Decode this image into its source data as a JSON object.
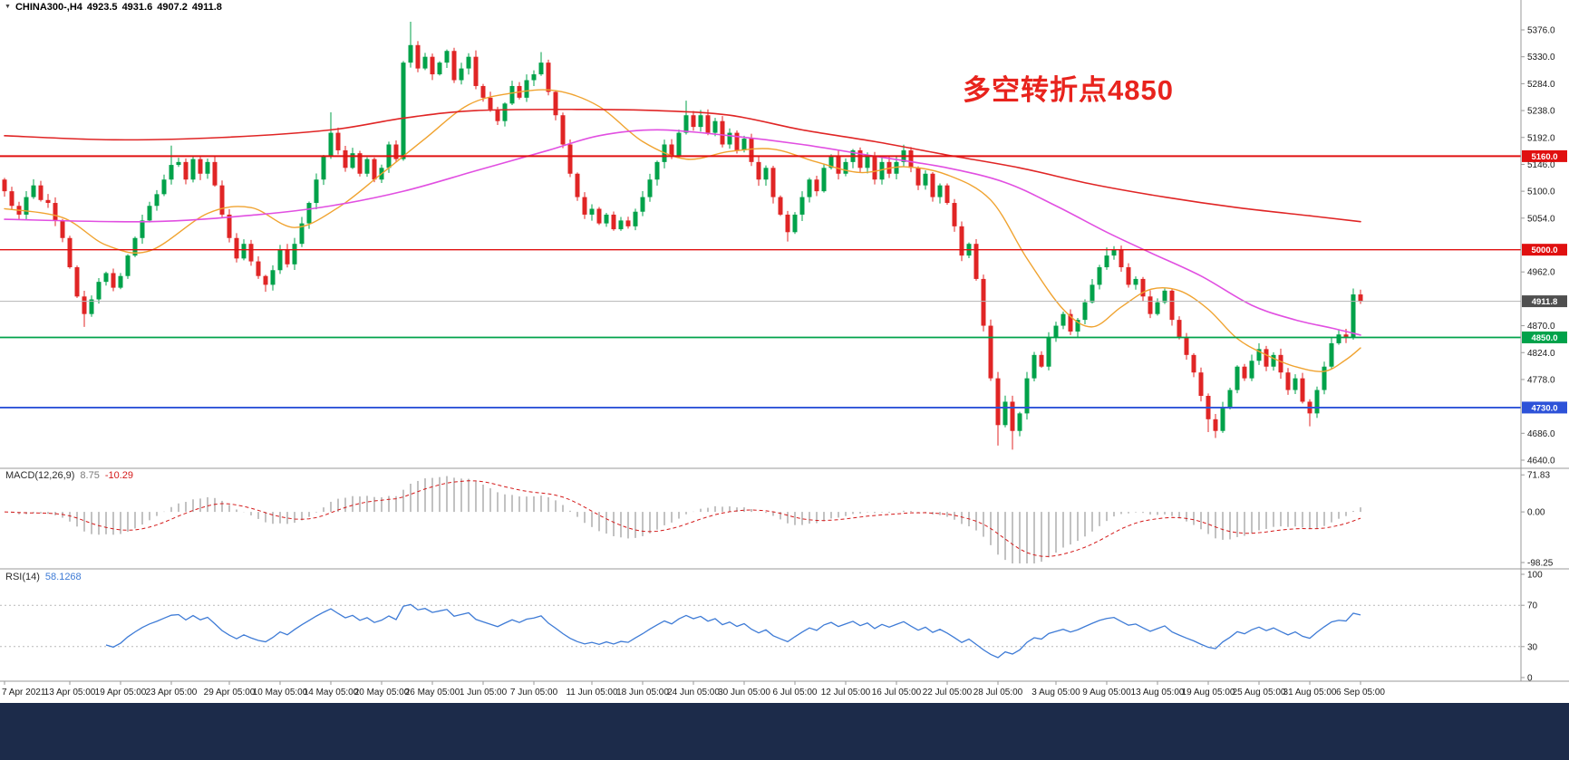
{
  "header": {
    "marker_icon": "▼",
    "symbol": "CHINA300-,H4",
    "open": "4923.5",
    "high": "4931.6",
    "low": "4907.2",
    "close": "4911.8"
  },
  "annotation": {
    "text": "多空转折点4850",
    "color": "#e8231d"
  },
  "colors": {
    "up": "#00a24a",
    "down": "#e02525",
    "ma_fast": "#f0a330",
    "ma_mid": "#e14fe1",
    "ma_slow": "#e02525",
    "macd_hist": "#9a9a9a",
    "macd_signal": "#d41a1a",
    "rsi_line": "#3e7bd6",
    "level_red": "#e01010",
    "level_green": "#00a24a",
    "level_blue": "#2d52d8",
    "current_price_line": "#b5b5b5",
    "badge_current_bg": "#4f4f4f",
    "badge_text": "#ffffff",
    "axis_text": "#1a1a1a",
    "separator": "#9a9a9a",
    "rsi_levels": "#b9b9b9",
    "bottom_bar": "#1c2b4a",
    "macd_value_main": "#7a7a7a"
  },
  "price_axis": {
    "ticks": [
      5376,
      5330,
      5284,
      5238,
      5192,
      5146,
      5100,
      5054,
      4962,
      4870,
      4824,
      4778,
      4686,
      4640
    ],
    "decimals": 1,
    "range": [
      4640,
      5376
    ]
  },
  "levels": [
    {
      "value": 5160.0,
      "label": "5160.0",
      "color_key": "level_red",
      "width": 2.0
    },
    {
      "value": 5000.0,
      "label": "5000.0",
      "color_key": "level_red",
      "width": 1.4
    },
    {
      "value": 4850.0,
      "label": "4850.0",
      "color_key": "level_green",
      "width": 1.8
    },
    {
      "value": 4730.0,
      "label": "4730.0",
      "color_key": "level_blue",
      "width": 1.8
    }
  ],
  "current_price": {
    "value": 4911.8,
    "label": "4911.8"
  },
  "x_axis": {
    "labels": [
      {
        "i": 0,
        "t": "7 Apr 2021"
      },
      {
        "i": 9,
        "t": "13 Apr 05:00"
      },
      {
        "i": 16,
        "t": "19 Apr 05:00"
      },
      {
        "i": 23,
        "t": "23 Apr 05:00"
      },
      {
        "i": 31,
        "t": "29 Apr 05:00"
      },
      {
        "i": 38,
        "t": "10 May 05:00"
      },
      {
        "i": 45,
        "t": "14 May 05:00"
      },
      {
        "i": 52,
        "t": "20 May 05:00"
      },
      {
        "i": 59,
        "t": "26 May 05:00"
      },
      {
        "i": 66,
        "t": "1 Jun 05:00"
      },
      {
        "i": 73,
        "t": "7 Jun 05:00"
      },
      {
        "i": 81,
        "t": "11 Jun 05:00"
      },
      {
        "i": 88,
        "t": "18 Jun 05:00"
      },
      {
        "i": 95,
        "t": "24 Jun 05:00"
      },
      {
        "i": 102,
        "t": "30 Jun 05:00"
      },
      {
        "i": 109,
        "t": "6 Jul 05:00"
      },
      {
        "i": 116,
        "t": "12 Jul 05:00"
      },
      {
        "i": 123,
        "t": "16 Jul 05:00"
      },
      {
        "i": 130,
        "t": "22 Jul 05:00"
      },
      {
        "i": 137,
        "t": "28 Jul 05:00"
      },
      {
        "i": 145,
        "t": "3 Aug 05:00"
      },
      {
        "i": 152,
        "t": "9 Aug 05:00"
      },
      {
        "i": 159,
        "t": "13 Aug 05:00"
      },
      {
        "i": 166,
        "t": "19 Aug 05:00"
      },
      {
        "i": 173,
        "t": "25 Aug 05:00"
      },
      {
        "i": 180,
        "t": "31 Aug 05:00"
      },
      {
        "i": 187,
        "t": "6 Sep 05:00"
      }
    ]
  },
  "chart_data": [
    {
      "type": "candlestick",
      "title": "CHINA300- H4",
      "ylim": [
        4640,
        5376
      ],
      "first_open": 5120,
      "closes": [
        5100,
        5075,
        5060,
        5090,
        5110,
        5085,
        5080,
        5050,
        5020,
        4970,
        4920,
        4890,
        4915,
        4945,
        4960,
        4935,
        4955,
        4990,
        5020,
        5050,
        5075,
        5095,
        5120,
        5145,
        5150,
        5120,
        5155,
        5130,
        5150,
        5110,
        5060,
        5020,
        4985,
        5010,
        4980,
        4955,
        4940,
        4965,
        5000,
        4975,
        5010,
        5045,
        5080,
        5120,
        5160,
        5200,
        5170,
        5140,
        5165,
        5130,
        5155,
        5120,
        5140,
        5180,
        5155,
        5320,
        5350,
        5310,
        5330,
        5300,
        5320,
        5340,
        5290,
        5310,
        5330,
        5280,
        5260,
        5240,
        5220,
        5250,
        5280,
        5260,
        5290,
        5300,
        5320,
        5270,
        5230,
        5180,
        5130,
        5090,
        5060,
        5070,
        5045,
        5060,
        5035,
        5050,
        5040,
        5065,
        5090,
        5120,
        5150,
        5180,
        5160,
        5200,
        5230,
        5210,
        5230,
        5200,
        5220,
        5180,
        5200,
        5170,
        5190,
        5150,
        5120,
        5140,
        5090,
        5060,
        5030,
        5060,
        5090,
        5120,
        5100,
        5140,
        5160,
        5130,
        5150,
        5170,
        5140,
        5160,
        5120,
        5150,
        5130,
        5150,
        5170,
        5140,
        5110,
        5130,
        5090,
        5110,
        5080,
        5040,
        4990,
        5010,
        4950,
        4870,
        4780,
        4700,
        4740,
        4690,
        4720,
        4780,
        4820,
        4800,
        4850,
        4870,
        4890,
        4860,
        4880,
        4910,
        4940,
        4970,
        4990,
        5000,
        4970,
        4940,
        4950,
        4920,
        4890,
        4910,
        4930,
        4880,
        4850,
        4820,
        4790,
        4750,
        4710,
        4690,
        4730,
        4760,
        4800,
        4780,
        4810,
        4830,
        4800,
        4820,
        4790,
        4760,
        4780,
        4740,
        4720,
        4760,
        4800,
        4840,
        4855,
        4850,
        4923.5,
        4911.8
      ],
      "wick_overrides": {
        "11": {
          "low": 4868
        },
        "23": {
          "high": 5178
        },
        "36": {
          "low": 4928
        },
        "45": {
          "high": 5235
        },
        "56": {
          "high": 5390
        },
        "74": {
          "high": 5338
        },
        "94": {
          "high": 5255
        },
        "108": {
          "low": 5014
        },
        "137": {
          "low": 4665
        },
        "139": {
          "low": 4658
        },
        "152": {
          "high": 5004
        },
        "153": {
          "high": 5006
        },
        "166": {
          "low": 4688
        },
        "167": {
          "low": 4678
        },
        "180": {
          "low": 4698
        },
        "187": {
          "high": 4931.6,
          "low": 4907.2
        }
      },
      "moving_averages": [
        {
          "name": "ma-fast-orange",
          "color_key": "ma_fast",
          "width": 1.4,
          "anchors": [
            [
              0,
              5070
            ],
            [
              8,
              5055
            ],
            [
              14,
              5008
            ],
            [
              20,
              4998
            ],
            [
              28,
              5062
            ],
            [
              34,
              5072
            ],
            [
              40,
              5038
            ],
            [
              46,
              5072
            ],
            [
              52,
              5130
            ],
            [
              58,
              5190
            ],
            [
              64,
              5248
            ],
            [
              70,
              5268
            ],
            [
              76,
              5272
            ],
            [
              82,
              5245
            ],
            [
              88,
              5185
            ],
            [
              94,
              5155
            ],
            [
              100,
              5168
            ],
            [
              106,
              5172
            ],
            [
              112,
              5150
            ],
            [
              118,
              5132
            ],
            [
              124,
              5142
            ],
            [
              130,
              5128
            ],
            [
              136,
              5085
            ],
            [
              141,
              4985
            ],
            [
              146,
              4898
            ],
            [
              150,
              4868
            ],
            [
              154,
              4902
            ],
            [
              158,
              4932
            ],
            [
              162,
              4930
            ],
            [
              166,
              4898
            ],
            [
              170,
              4848
            ],
            [
              174,
              4820
            ],
            [
              178,
              4800
            ],
            [
              182,
              4792
            ],
            [
              185,
              4812
            ],
            [
              187,
              4832
            ]
          ]
        },
        {
          "name": "ma-mid-magenta",
          "color_key": "ma_mid",
          "width": 1.6,
          "anchors": [
            [
              0,
              5052
            ],
            [
              20,
              5048
            ],
            [
              35,
              5060
            ],
            [
              45,
              5075
            ],
            [
              55,
              5100
            ],
            [
              65,
              5135
            ],
            [
              75,
              5170
            ],
            [
              82,
              5195
            ],
            [
              90,
              5205
            ],
            [
              100,
              5195
            ],
            [
              110,
              5180
            ],
            [
              120,
              5160
            ],
            [
              130,
              5140
            ],
            [
              138,
              5115
            ],
            [
              145,
              5075
            ],
            [
              152,
              5030
            ],
            [
              158,
              4995
            ],
            [
              165,
              4955
            ],
            [
              172,
              4905
            ],
            [
              178,
              4880
            ],
            [
              183,
              4866
            ],
            [
              187,
              4854
            ]
          ]
        },
        {
          "name": "ma-slow-red",
          "color_key": "ma_slow",
          "width": 1.6,
          "anchors": [
            [
              0,
              5195
            ],
            [
              15,
              5188
            ],
            [
              30,
              5192
            ],
            [
              45,
              5205
            ],
            [
              55,
              5225
            ],
            [
              65,
              5238
            ],
            [
              80,
              5240
            ],
            [
              90,
              5238
            ],
            [
              100,
              5230
            ],
            [
              110,
              5205
            ],
            [
              120,
              5185
            ],
            [
              130,
              5162
            ],
            [
              140,
              5140
            ],
            [
              150,
              5112
            ],
            [
              160,
              5090
            ],
            [
              170,
              5072
            ],
            [
              180,
              5058
            ],
            [
              187,
              5048
            ]
          ]
        }
      ]
    },
    {
      "type": "macd",
      "label": "MACD(12,26,9)",
      "value_main": "8.75",
      "value_signal": "-10.29",
      "params": {
        "fast": 12,
        "slow": 26,
        "signal": 9
      },
      "ylim": [
        -100,
        74
      ],
      "ticks": [
        71.83,
        0,
        -98.25
      ],
      "tick_decimals": 2
    },
    {
      "type": "rsi",
      "label": "RSI(14)",
      "value": "58.1268",
      "period": 14,
      "levels": [
        70,
        30
      ],
      "ylim": [
        0,
        100
      ],
      "ticks": [
        100,
        70,
        30,
        0
      ],
      "tick_decimals": 0
    }
  ]
}
